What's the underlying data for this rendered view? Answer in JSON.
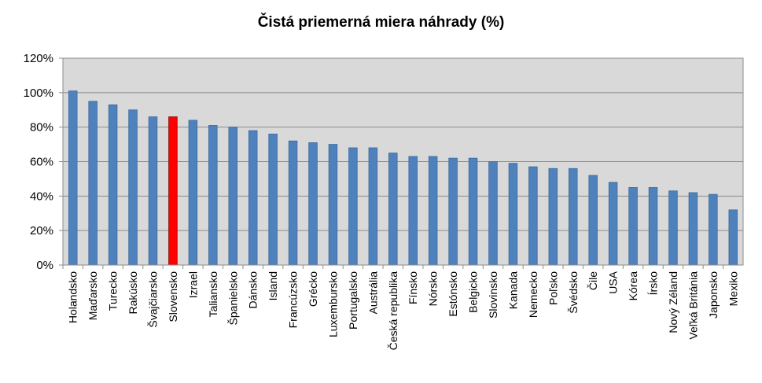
{
  "chart_data": {
    "type": "bar",
    "title": "Čistá priemerná miera náhrady (%)",
    "xlabel": "",
    "ylabel": "",
    "ylim": [
      0,
      120
    ],
    "yticks": [
      "0%",
      "20%",
      "40%",
      "60%",
      "80%",
      "100%",
      "120%"
    ],
    "grid": true,
    "legend": "none",
    "categories": [
      "Holandsko",
      "Maďarsko",
      "Turecko",
      "Rakúsko",
      "Švajčiarsko",
      "Slovensko",
      "Izrael",
      "Taliansko",
      "Španielsko",
      "Dánsko",
      "Island",
      "Francúzsko",
      "Grécko",
      "Luxembursko",
      "Portugalsko",
      "Austrália",
      "Česká republika",
      "Fínsko",
      "Nórsko",
      "Estónsko",
      "Belgicko",
      "Slovinsko",
      "Kanada",
      "Nemecko",
      "Poľsko",
      "Švédsko",
      "Čile",
      "USA",
      "Kórea",
      "Írsko",
      "Nový Zéland",
      "Veľká Británia",
      "Japonsko",
      "Mexiko"
    ],
    "values": [
      101,
      95,
      93,
      90,
      86,
      86,
      84,
      81,
      80,
      78,
      76,
      72,
      71,
      70,
      68,
      68,
      65,
      63,
      63,
      62,
      62,
      60,
      59,
      57,
      56,
      56,
      52,
      48,
      45,
      45,
      43,
      42,
      41,
      32
    ],
    "colors": {
      "bar": "#4F81BD",
      "highlight": "#FF0000",
      "plot_bg": "#D9D9D9",
      "grid": "#8C8C8C"
    },
    "highlight_category": "Slovensko"
  }
}
